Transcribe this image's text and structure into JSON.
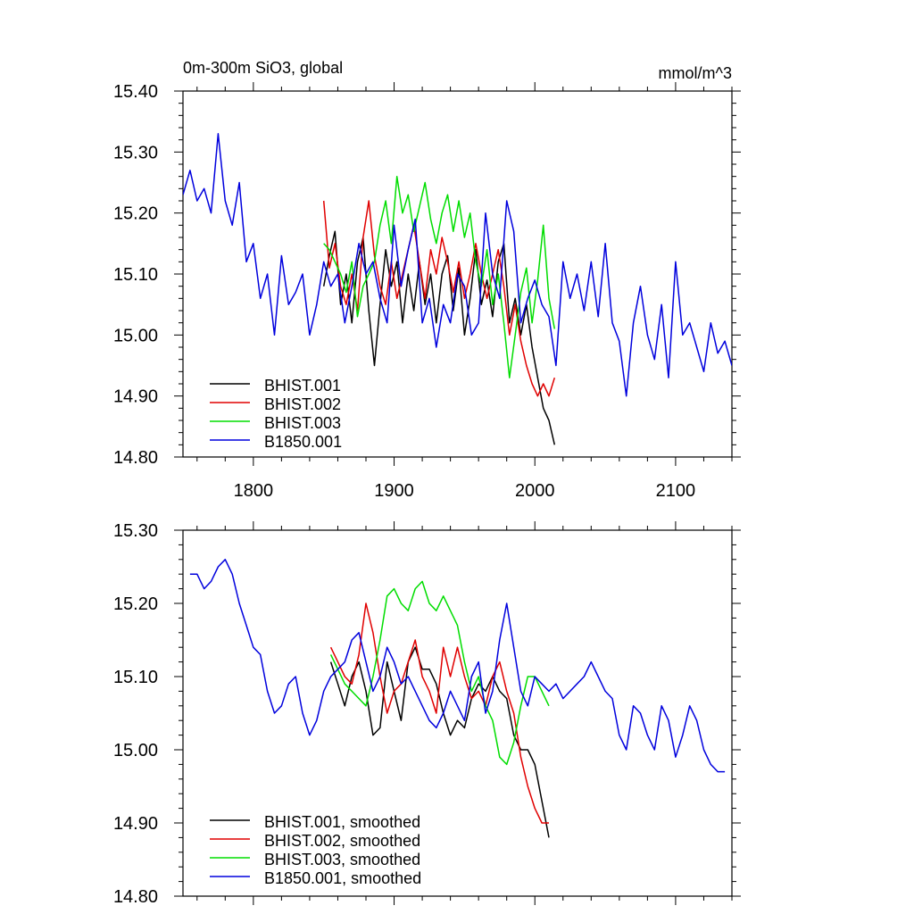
{
  "chart_data": [
    {
      "type": "line",
      "title": "0m-300m SiO3, global",
      "units": "mmol/m^3",
      "xlim": [
        1750,
        2140
      ],
      "ylim": [
        14.8,
        15.4
      ],
      "xticks": [
        1800,
        1900,
        2000,
        2100
      ],
      "xtick_labels": [
        "1800",
        "1900",
        "2000",
        "2100"
      ],
      "yticks": [
        14.8,
        14.9,
        15.0,
        15.1,
        15.2,
        15.3,
        15.4
      ],
      "ytick_labels": [
        "14.80",
        "14.90",
        "15.00",
        "15.10",
        "15.20",
        "15.30",
        "15.40"
      ],
      "legend_position": "bottom-left",
      "series": [
        {
          "name": "BHIST.001",
          "color": "#000000",
          "x": [
            1850,
            1854,
            1858,
            1862,
            1866,
            1870,
            1874,
            1878,
            1882,
            1886,
            1890,
            1894,
            1898,
            1902,
            1906,
            1910,
            1914,
            1918,
            1922,
            1926,
            1930,
            1934,
            1938,
            1942,
            1946,
            1950,
            1954,
            1958,
            1962,
            1966,
            1970,
            1974,
            1978,
            1982,
            1986,
            1990,
            1994,
            1998,
            2002,
            2006,
            2010,
            2014
          ],
          "values": [
            15.08,
            15.13,
            15.17,
            15.05,
            15.1,
            15.02,
            15.12,
            15.16,
            15.04,
            14.95,
            15.05,
            15.14,
            15.08,
            15.12,
            15.02,
            15.1,
            15.04,
            15.12,
            15.05,
            15.1,
            15.02,
            15.1,
            15.13,
            15.04,
            15.11,
            15.0,
            15.06,
            15.14,
            15.05,
            15.09,
            15.03,
            15.12,
            15.15,
            15.02,
            15.06,
            15.0,
            15.05,
            14.98,
            14.93,
            14.88,
            14.86,
            14.82
          ]
        },
        {
          "name": "BHIST.002",
          "color": "#e00000",
          "x": [
            1850,
            1854,
            1858,
            1862,
            1866,
            1870,
            1874,
            1878,
            1882,
            1886,
            1890,
            1894,
            1898,
            1902,
            1906,
            1910,
            1914,
            1918,
            1922,
            1926,
            1930,
            1934,
            1938,
            1942,
            1946,
            1950,
            1954,
            1958,
            1962,
            1966,
            1970,
            1974,
            1978,
            1982,
            1986,
            1990,
            1994,
            1998,
            2002,
            2006,
            2010,
            2014
          ],
          "values": [
            15.22,
            15.11,
            15.15,
            15.08,
            15.05,
            15.1,
            15.04,
            15.16,
            15.22,
            15.13,
            15.08,
            15.05,
            15.12,
            15.06,
            15.1,
            15.14,
            15.18,
            15.12,
            15.06,
            15.14,
            15.1,
            15.16,
            15.12,
            15.07,
            15.12,
            15.06,
            15.1,
            15.15,
            15.1,
            15.06,
            15.1,
            15.14,
            15.08,
            15.0,
            15.05,
            14.99,
            14.95,
            14.92,
            14.9,
            14.92,
            14.9,
            14.93
          ]
        },
        {
          "name": "BHIST.003",
          "color": "#00dd00",
          "x": [
            1850,
            1854,
            1858,
            1862,
            1866,
            1870,
            1874,
            1878,
            1882,
            1886,
            1890,
            1894,
            1898,
            1902,
            1906,
            1910,
            1914,
            1918,
            1922,
            1926,
            1930,
            1934,
            1938,
            1942,
            1946,
            1950,
            1954,
            1958,
            1962,
            1966,
            1970,
            1974,
            1978,
            1982,
            1986,
            1990,
            1994,
            1998,
            2002,
            2006,
            2010,
            2014
          ],
          "values": [
            15.15,
            15.14,
            15.12,
            15.1,
            15.07,
            15.12,
            15.03,
            15.08,
            15.1,
            15.12,
            15.18,
            15.22,
            15.15,
            15.26,
            15.2,
            15.23,
            15.17,
            15.21,
            15.25,
            15.19,
            15.15,
            15.2,
            15.23,
            15.17,
            15.22,
            15.16,
            15.2,
            15.12,
            15.08,
            15.14,
            15.05,
            15.1,
            15.02,
            14.93,
            15.0,
            15.07,
            15.11,
            15.02,
            15.09,
            15.18,
            15.06,
            15.01
          ]
        },
        {
          "name": "B1850.001",
          "color": "#0000dd",
          "x": [
            1750,
            1755,
            1760,
            1765,
            1770,
            1775,
            1780,
            1785,
            1790,
            1795,
            1800,
            1805,
            1810,
            1815,
            1820,
            1825,
            1830,
            1835,
            1840,
            1845,
            1850,
            1855,
            1860,
            1865,
            1870,
            1875,
            1880,
            1885,
            1890,
            1895,
            1900,
            1905,
            1910,
            1915,
            1920,
            1925,
            1930,
            1935,
            1940,
            1945,
            1950,
            1955,
            1960,
            1965,
            1970,
            1975,
            1980,
            1985,
            1990,
            1995,
            2000,
            2005,
            2010,
            2015,
            2020,
            2025,
            2030,
            2035,
            2040,
            2045,
            2050,
            2055,
            2060,
            2065,
            2070,
            2075,
            2080,
            2085,
            2090,
            2095,
            2100,
            2105,
            2110,
            2115,
            2120,
            2125,
            2130,
            2135,
            2140
          ],
          "values": [
            15.23,
            15.27,
            15.22,
            15.24,
            15.2,
            15.33,
            15.22,
            15.18,
            15.25,
            15.12,
            15.15,
            15.06,
            15.1,
            15.0,
            15.13,
            15.05,
            15.07,
            15.1,
            15.0,
            15.05,
            15.12,
            15.08,
            15.1,
            15.02,
            15.08,
            15.15,
            15.1,
            15.12,
            15.06,
            15.02,
            15.18,
            15.08,
            15.14,
            15.19,
            15.02,
            15.06,
            14.98,
            15.05,
            15.02,
            15.1,
            15.08,
            15.0,
            15.02,
            15.2,
            15.1,
            15.06,
            15.22,
            15.17,
            15.02,
            15.06,
            15.09,
            15.05,
            15.03,
            14.95,
            15.12,
            15.06,
            15.1,
            15.04,
            15.12,
            15.03,
            15.15,
            15.02,
            14.99,
            14.9,
            15.02,
            15.08,
            15.0,
            14.96,
            15.05,
            14.93,
            15.12,
            15.0,
            15.02,
            14.98,
            14.94,
            15.02,
            14.97,
            14.99,
            14.95
          ]
        }
      ]
    },
    {
      "type": "line",
      "title": "",
      "xlim": [
        1750,
        2140
      ],
      "ylim": [
        14.8,
        15.3
      ],
      "xticks": [
        1800,
        1900,
        2000,
        2100
      ],
      "xtick_labels": [],
      "yticks": [
        14.8,
        14.9,
        15.0,
        15.1,
        15.2,
        15.3
      ],
      "ytick_labels": [
        "14.80",
        "14.90",
        "15.00",
        "15.10",
        "15.20",
        "15.30"
      ],
      "legend_position": "bottom-left",
      "series": [
        {
          "name": "BHIST.001, smoothed",
          "color": "#000000",
          "x": [
            1855,
            1860,
            1865,
            1870,
            1875,
            1880,
            1885,
            1890,
            1895,
            1900,
            1905,
            1910,
            1915,
            1920,
            1925,
            1930,
            1935,
            1940,
            1945,
            1950,
            1955,
            1960,
            1965,
            1970,
            1975,
            1980,
            1985,
            1990,
            1995,
            2000,
            2005,
            2010
          ],
          "values": [
            15.12,
            15.09,
            15.06,
            15.1,
            15.12,
            15.08,
            15.02,
            15.03,
            15.12,
            15.08,
            15.04,
            15.12,
            15.14,
            15.11,
            15.11,
            15.09,
            15.05,
            15.02,
            15.04,
            15.03,
            15.07,
            15.09,
            15.08,
            15.1,
            15.08,
            15.07,
            15.02,
            15.0,
            15.0,
            14.98,
            14.93,
            14.88
          ]
        },
        {
          "name": "BHIST.002, smoothed",
          "color": "#e00000",
          "x": [
            1855,
            1860,
            1865,
            1870,
            1875,
            1880,
            1885,
            1890,
            1895,
            1900,
            1905,
            1910,
            1915,
            1920,
            1925,
            1930,
            1935,
            1940,
            1945,
            1950,
            1955,
            1960,
            1965,
            1970,
            1975,
            1980,
            1985,
            1990,
            1995,
            2000,
            2005,
            2010
          ],
          "values": [
            15.14,
            15.12,
            15.1,
            15.09,
            15.13,
            15.2,
            15.16,
            15.1,
            15.05,
            15.08,
            15.09,
            15.12,
            15.15,
            15.1,
            15.08,
            15.05,
            15.14,
            15.1,
            15.14,
            15.1,
            15.07,
            15.08,
            15.06,
            15.1,
            15.12,
            15.08,
            15.05,
            14.99,
            14.95,
            14.92,
            14.9,
            14.9
          ]
        },
        {
          "name": "BHIST.003, smoothed",
          "color": "#00dd00",
          "x": [
            1855,
            1860,
            1865,
            1870,
            1875,
            1880,
            1885,
            1890,
            1895,
            1900,
            1905,
            1910,
            1915,
            1920,
            1925,
            1930,
            1935,
            1940,
            1945,
            1950,
            1955,
            1960,
            1965,
            1970,
            1975,
            1980,
            1985,
            1990,
            1995,
            2000,
            2005,
            2010
          ],
          "values": [
            15.13,
            15.11,
            15.09,
            15.08,
            15.07,
            15.06,
            15.1,
            15.15,
            15.21,
            15.22,
            15.2,
            15.19,
            15.22,
            15.23,
            15.2,
            15.19,
            15.21,
            15.19,
            15.17,
            15.12,
            15.08,
            15.1,
            15.06,
            15.04,
            14.99,
            14.98,
            15.01,
            15.06,
            15.1,
            15.1,
            15.08,
            15.06
          ]
        },
        {
          "name": "B1850.001, smoothed",
          "color": "#0000dd",
          "x": [
            1755,
            1760,
            1765,
            1770,
            1775,
            1780,
            1785,
            1790,
            1795,
            1800,
            1805,
            1810,
            1815,
            1820,
            1825,
            1830,
            1835,
            1840,
            1845,
            1850,
            1855,
            1860,
            1865,
            1870,
            1875,
            1880,
            1885,
            1890,
            1895,
            1900,
            1905,
            1910,
            1915,
            1920,
            1925,
            1930,
            1935,
            1940,
            1945,
            1950,
            1955,
            1960,
            1965,
            1970,
            1975,
            1980,
            1985,
            1990,
            1995,
            2000,
            2005,
            2010,
            2015,
            2020,
            2025,
            2030,
            2035,
            2040,
            2045,
            2050,
            2055,
            2060,
            2065,
            2070,
            2075,
            2080,
            2085,
            2090,
            2095,
            2100,
            2105,
            2110,
            2115,
            2120,
            2125,
            2130,
            2135
          ],
          "values": [
            15.24,
            15.24,
            15.22,
            15.23,
            15.25,
            15.26,
            15.24,
            15.2,
            15.17,
            15.14,
            15.13,
            15.08,
            15.05,
            15.06,
            15.09,
            15.1,
            15.05,
            15.02,
            15.04,
            15.08,
            15.1,
            15.11,
            15.12,
            15.15,
            15.16,
            15.12,
            15.08,
            15.1,
            15.14,
            15.12,
            15.09,
            15.1,
            15.08,
            15.06,
            15.04,
            15.03,
            15.05,
            15.08,
            15.06,
            15.04,
            15.1,
            15.12,
            15.05,
            15.08,
            15.15,
            15.2,
            15.14,
            15.08,
            15.06,
            15.1,
            15.09,
            15.08,
            15.09,
            15.07,
            15.08,
            15.09,
            15.1,
            15.12,
            15.1,
            15.08,
            15.07,
            15.02,
            15.0,
            15.06,
            15.05,
            15.02,
            15.0,
            15.06,
            15.04,
            14.99,
            15.02,
            15.06,
            15.04,
            15.0,
            14.98,
            14.97,
            14.97
          ]
        }
      ]
    }
  ]
}
